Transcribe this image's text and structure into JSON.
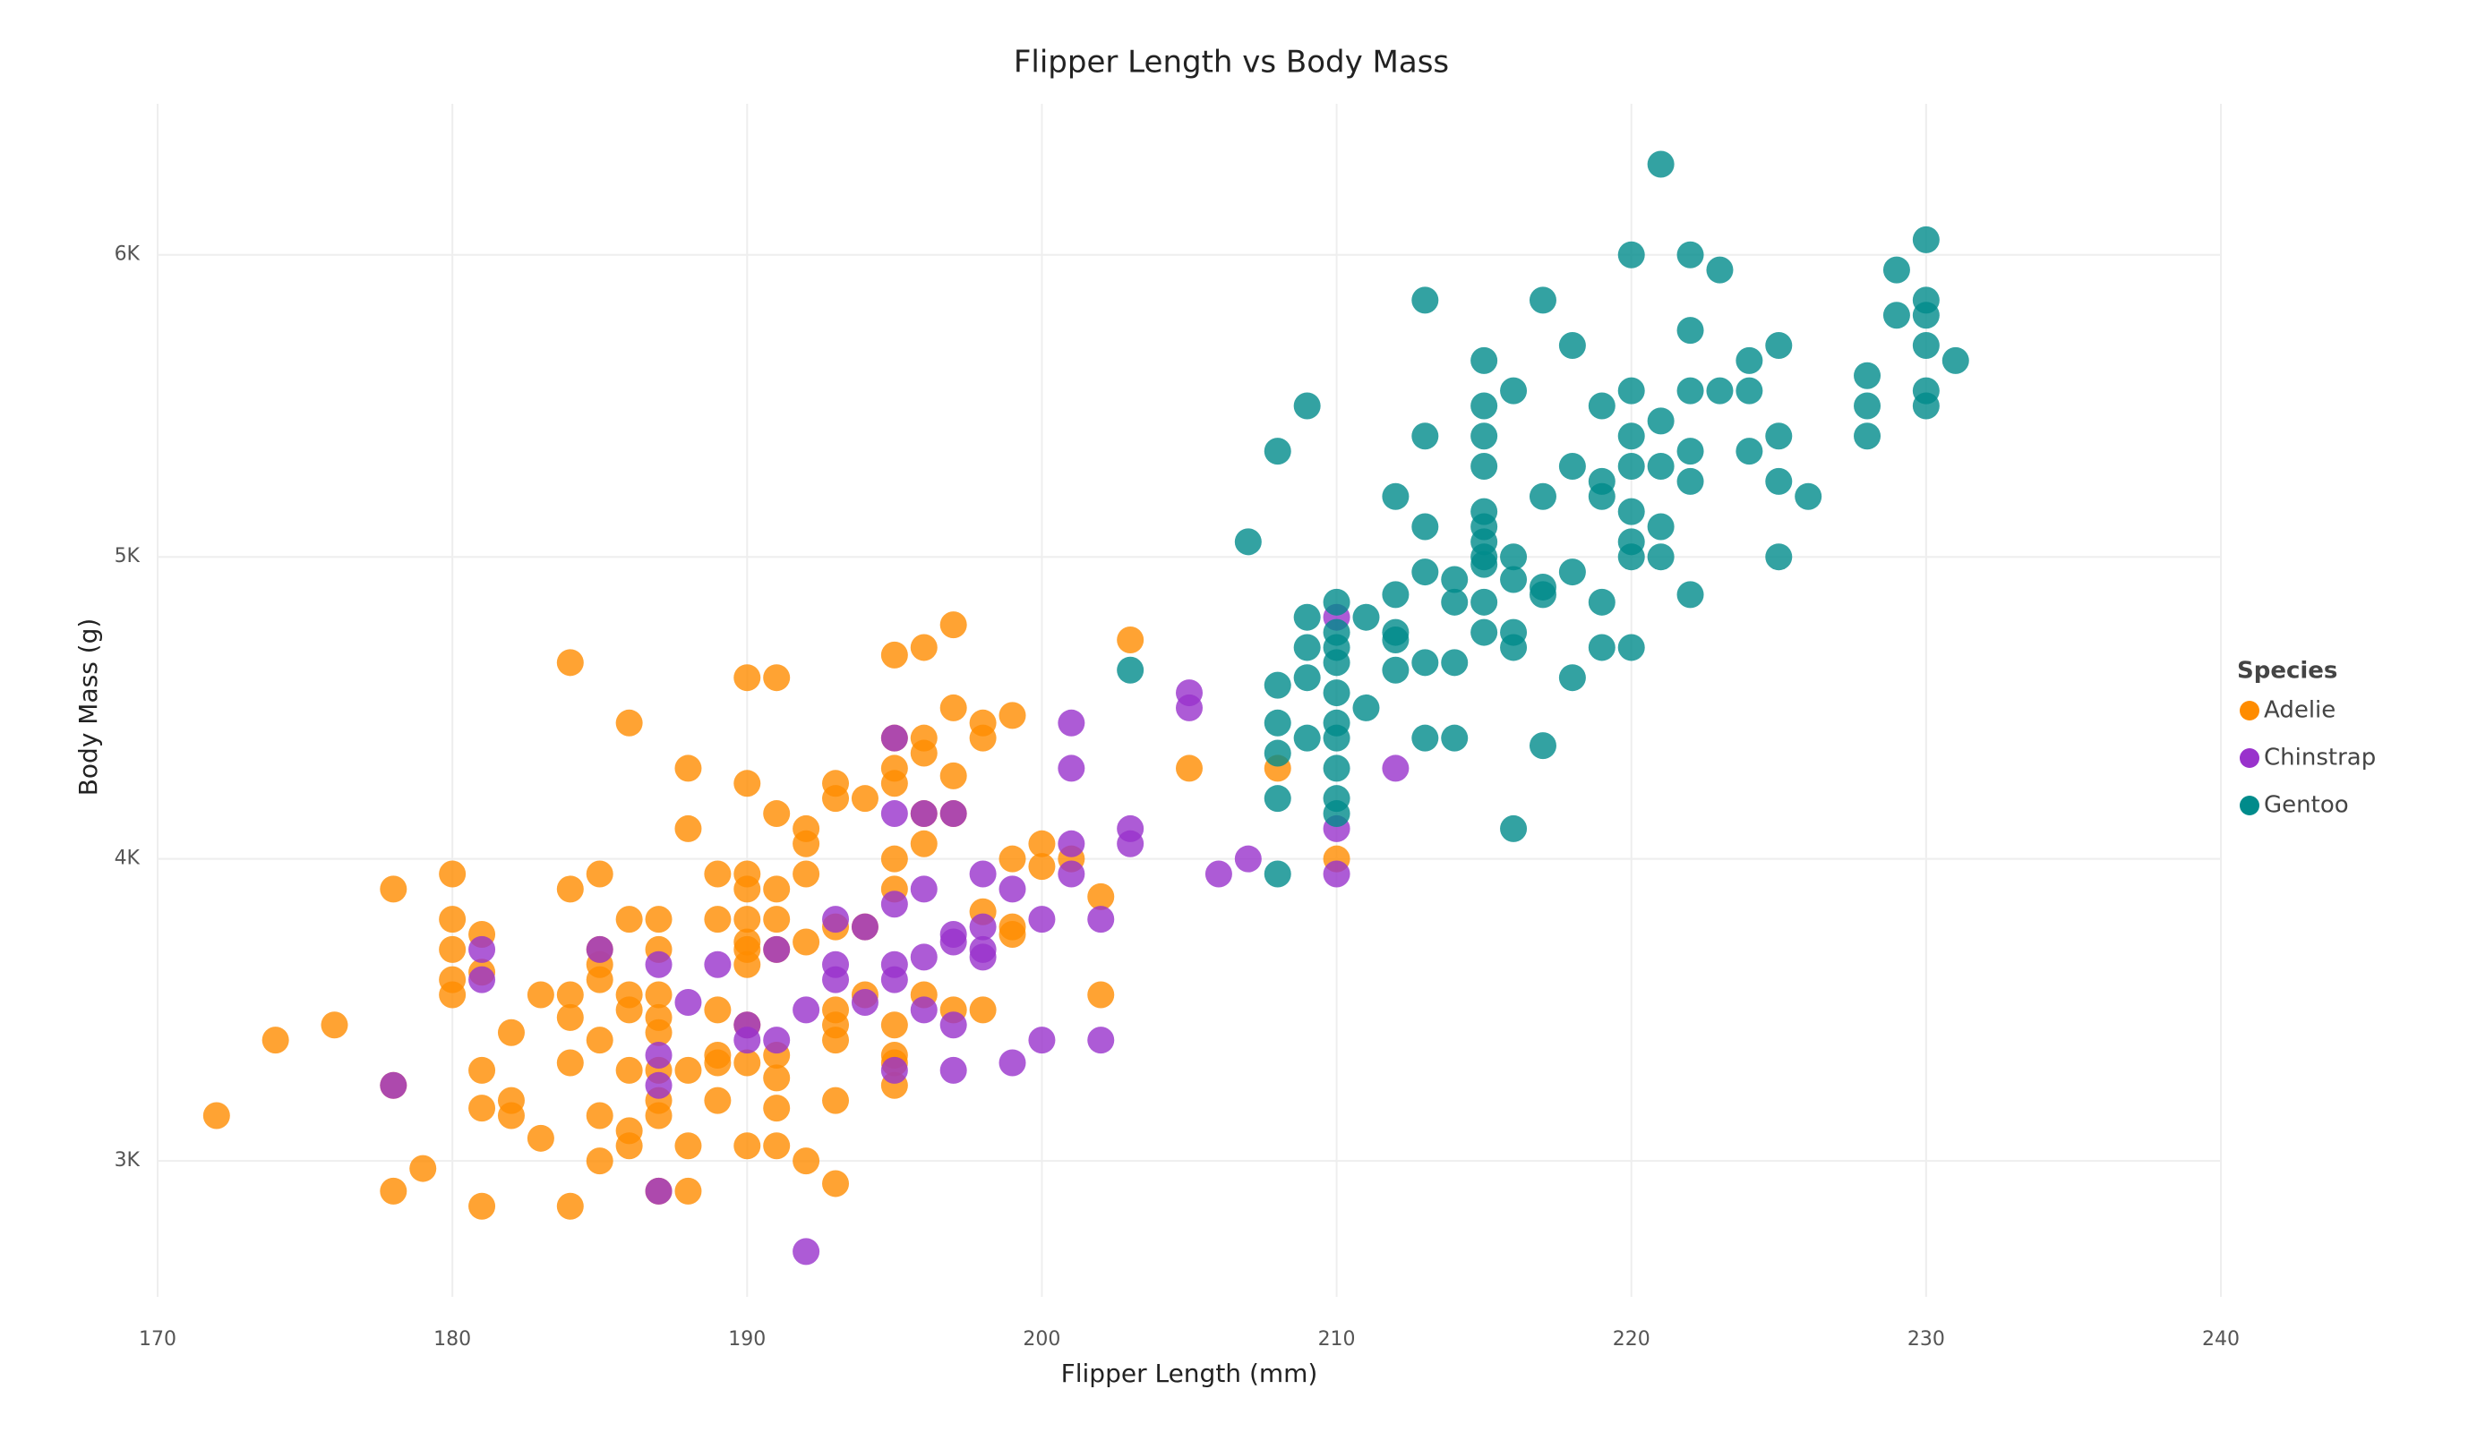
{
  "chart_data": {
    "type": "scatter",
    "title": "Flipper Length vs Body Mass",
    "x_label": "Flipper Length (mm)",
    "y_label": "Body Mass (g)",
    "legend_title": "Species",
    "legend_position": "right",
    "grid": true,
    "xlim": [
      170,
      240
    ],
    "xticks": [
      170,
      180,
      190,
      200,
      210,
      220,
      230,
      240
    ],
    "ylim": [
      2550,
      6500
    ],
    "yticks": [
      {
        "value": 3000,
        "label": "3K"
      },
      {
        "value": 4000,
        "label": "4K"
      },
      {
        "value": 5000,
        "label": "5K"
      },
      {
        "value": 6000,
        "label": "6K"
      }
    ],
    "series": [
      {
        "name": "Adelie",
        "color": "#ff8c00",
        "x": [
          172,
          174,
          176,
          178,
          178,
          179,
          178,
          180,
          180,
          180,
          180,
          180,
          181,
          181,
          181,
          181,
          181,
          182,
          182,
          182,
          183,
          183,
          184,
          184,
          184,
          184,
          184,
          184,
          185,
          185,
          185,
          185,
          185,
          185,
          185,
          186,
          186,
          186,
          186,
          186,
          186,
          186,
          187,
          187,
          187,
          187,
          187,
          187,
          187,
          187,
          187,
          188,
          188,
          188,
          188,
          188,
          189,
          189,
          189,
          189,
          189,
          189,
          190,
          190,
          190,
          190,
          190,
          190,
          190,
          190,
          190,
          190,
          190,
          191,
          191,
          191,
          191,
          191,
          191,
          191,
          191,
          191,
          192,
          192,
          192,
          192,
          192,
          193,
          193,
          193,
          193,
          193,
          193,
          193,
          193,
          194,
          194,
          194,
          195,
          195,
          195,
          195,
          195,
          195,
          195,
          195,
          195,
          195,
          196,
          196,
          196,
          196,
          196,
          196,
          197,
          197,
          197,
          197,
          197,
          198,
          198,
          198,
          198,
          199,
          199,
          199,
          199,
          200,
          200,
          201,
          202,
          202,
          203,
          205,
          208,
          210
        ],
        "values": [
          3150,
          3400,
          3450,
          3900,
          2900,
          2975,
          3250,
          3950,
          3800,
          3700,
          3600,
          3550,
          3750,
          3625,
          3300,
          3175,
          2850,
          3425,
          3200,
          3150,
          3550,
          3075,
          4650,
          3900,
          3550,
          3475,
          3325,
          2850,
          3950,
          3700,
          3650,
          3600,
          3400,
          3150,
          3000,
          4450,
          3800,
          3550,
          3500,
          3300,
          3100,
          3050,
          3800,
          3700,
          3550,
          3475,
          3425,
          3300,
          3200,
          3150,
          2900,
          4300,
          4100,
          3300,
          3050,
          2900,
          3950,
          3800,
          3500,
          3350,
          3325,
          3200,
          4600,
          4250,
          3950,
          3900,
          3800,
          3725,
          3700,
          3650,
          3450,
          3325,
          3050,
          4600,
          4150,
          3900,
          3800,
          3700,
          3350,
          3275,
          3175,
          3050,
          4100,
          4050,
          3950,
          3725,
          3000,
          4250,
          4200,
          3775,
          3500,
          3450,
          3400,
          3200,
          2925,
          4200,
          3775,
          3550,
          4675,
          4400,
          4300,
          4250,
          4000,
          3900,
          3450,
          3350,
          3325,
          3250,
          4700,
          4400,
          4350,
          4150,
          4050,
          3550,
          4775,
          4500,
          4275,
          4150,
          3500,
          4450,
          4400,
          3825,
          3500,
          4475,
          4000,
          3775,
          3750,
          4050,
          3975,
          4000,
          3875,
          3550,
          4725,
          4300,
          4300,
          4000
        ]
      },
      {
        "name": "Chinstrap",
        "color": "#9932cc",
        "x": [
          178,
          181,
          181,
          185,
          187,
          187,
          187,
          187,
          188,
          189,
          190,
          190,
          191,
          191,
          192,
          192,
          193,
          193,
          193,
          194,
          194,
          195,
          195,
          195,
          195,
          195,
          195,
          196,
          196,
          196,
          196,
          197,
          197,
          197,
          197,
          197,
          198,
          198,
          198,
          198,
          199,
          199,
          200,
          200,
          201,
          201,
          201,
          201,
          202,
          202,
          203,
          203,
          205,
          205,
          206,
          207,
          210,
          210,
          210,
          212
        ],
        "values": [
          3250,
          3700,
          3600,
          3700,
          3650,
          3350,
          3250,
          2900,
          3525,
          3650,
          3400,
          3450,
          3700,
          3400,
          3500,
          2700,
          3800,
          3650,
          3600,
          3775,
          3525,
          4400,
          4150,
          3850,
          3650,
          3600,
          3300,
          4150,
          3900,
          3675,
          3500,
          4150,
          3750,
          3725,
          3450,
          3300,
          3950,
          3775,
          3700,
          3675,
          3900,
          3325,
          3800,
          3400,
          4450,
          4300,
          4050,
          3950,
          3800,
          3400,
          4100,
          4050,
          4550,
          4500,
          3950,
          4000,
          4800,
          4100,
          3950,
          4300
        ]
      },
      {
        "name": "Gentoo",
        "color": "#008b8b",
        "x": [
          203,
          207,
          208,
          208,
          208,
          208,
          208,
          208,
          209,
          209,
          209,
          209,
          209,
          210,
          210,
          210,
          210,
          210,
          210,
          210,
          210,
          210,
          210,
          211,
          211,
          212,
          212,
          212,
          212,
          212,
          213,
          213,
          213,
          213,
          213,
          213,
          214,
          214,
          214,
          214,
          215,
          215,
          215,
          215,
          215,
          215,
          215,
          215,
          215,
          215,
          215,
          216,
          216,
          216,
          216,
          216,
          216,
          217,
          217,
          217,
          217,
          217,
          218,
          218,
          218,
          218,
          219,
          219,
          219,
          219,
          219,
          220,
          220,
          220,
          220,
          220,
          220,
          220,
          220,
          221,
          221,
          221,
          221,
          221,
          222,
          222,
          222,
          222,
          222,
          222,
          223,
          223,
          224,
          224,
          224,
          225,
          225,
          225,
          225,
          226,
          228,
          228,
          228,
          229,
          229,
          230,
          230,
          230,
          230,
          230,
          230,
          231
        ],
        "values": [
          4625,
          5050,
          5350,
          4575,
          4450,
          4350,
          4200,
          3950,
          5500,
          4800,
          4700,
          4600,
          4400,
          4850,
          4750,
          4700,
          4650,
          4550,
          4450,
          4400,
          4300,
          4200,
          4150,
          4800,
          4500,
          5200,
          4875,
          4750,
          4725,
          4625,
          5850,
          5400,
          5100,
          4950,
          4650,
          4400,
          4925,
          4850,
          4650,
          4400,
          5650,
          5500,
          5400,
          5300,
          5150,
          5100,
          5050,
          5000,
          4975,
          4850,
          4750,
          5550,
          5000,
          4925,
          4750,
          4700,
          4100,
          5850,
          5200,
          4900,
          4875,
          4375,
          5700,
          5300,
          4950,
          4600,
          5500,
          5250,
          5200,
          4850,
          4700,
          6000,
          5550,
          5400,
          5300,
          5150,
          5050,
          5000,
          4700,
          6300,
          5450,
          5300,
          5100,
          5000,
          6000,
          5750,
          5550,
          5350,
          5250,
          4875,
          5950,
          5550,
          5650,
          5550,
          5350,
          5700,
          5400,
          5250,
          5000,
          5200,
          5600,
          5500,
          5400,
          5950,
          5800,
          6050,
          5850,
          5800,
          5700,
          5550,
          5500,
          5650
        ]
      }
    ]
  }
}
